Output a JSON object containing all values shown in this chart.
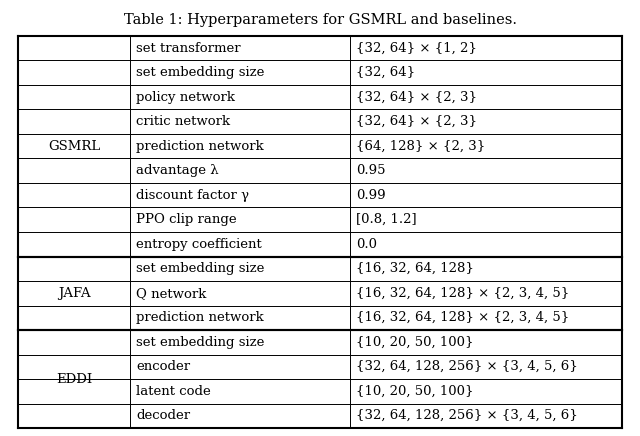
{
  "title": "Table 1: Hyperparameters for GSMRL and baselines.",
  "sections": [
    {
      "label": "GSMRL",
      "rows": [
        [
          "set transformer",
          "{32, 64} × {1, 2}"
        ],
        [
          "set embedding size",
          "{32, 64}"
        ],
        [
          "policy network",
          "{32, 64} × {2, 3}"
        ],
        [
          "critic network",
          "{32, 64} × {2, 3}"
        ],
        [
          "prediction network",
          "{64, 128} × {2, 3}"
        ],
        [
          "advantage λ",
          "0.95"
        ],
        [
          "discount factor γ",
          "0.99"
        ],
        [
          "PPO clip range",
          "[0.8, 1.2]"
        ],
        [
          "entropy coefficient",
          "0.0"
        ]
      ]
    },
    {
      "label": "JAFA",
      "rows": [
        [
          "set embedding size",
          "{16, 32, 64, 128}"
        ],
        [
          "Q network",
          "{16, 32, 64, 128} × {2, 3, 4, 5}"
        ],
        [
          "prediction network",
          "{16, 32, 64, 128} × {2, 3, 4, 5}"
        ]
      ]
    },
    {
      "label": "EDDI",
      "rows": [
        [
          "set embedding size",
          "{10, 20, 50, 100}"
        ],
        [
          "encoder",
          "{32, 64, 128, 256} × {3, 4, 5, 6}"
        ],
        [
          "latent code",
          "{10, 20, 50, 100}"
        ],
        [
          "decoder",
          "{32, 64, 128, 256} × {3, 4, 5, 6}"
        ]
      ]
    }
  ],
  "background_color": "#ffffff",
  "line_color": "#000000",
  "text_color": "#000000",
  "title_fontsize": 10.5,
  "cell_fontsize": 9.5
}
